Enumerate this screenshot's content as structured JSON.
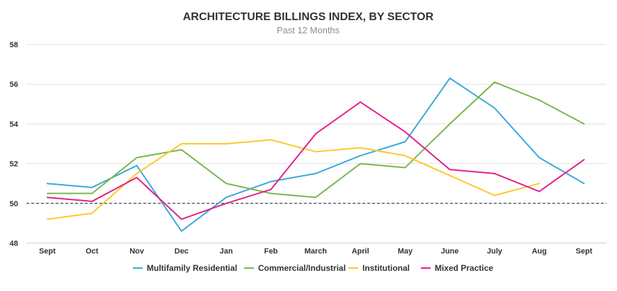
{
  "chart_data": {
    "type": "line",
    "title": "ARCHITECTURE BILLINGS INDEX, BY SECTOR",
    "subtitle": "Past 12 Months",
    "xlabel": "",
    "ylabel": "",
    "ylim": [
      48,
      58
    ],
    "yticks": [
      "48",
      "50",
      "52",
      "54",
      "56",
      "58"
    ],
    "categories": [
      "Sept",
      "Oct",
      "Nov",
      "Dec",
      "Jan",
      "Feb",
      "March",
      "April",
      "May",
      "June",
      "July",
      "Aug",
      "Sept"
    ],
    "reference_line": 50,
    "grid": true,
    "legend_position": "bottom",
    "series": [
      {
        "name": "Multifamily Residential",
        "color": "#3aa8dc",
        "values": [
          51.0,
          50.8,
          51.9,
          48.6,
          50.3,
          51.1,
          51.5,
          52.4,
          53.1,
          56.3,
          54.8,
          52.3,
          51.0
        ]
      },
      {
        "name": "Commercial/Industrial",
        "color": "#7ab648",
        "values": [
          50.5,
          50.5,
          52.3,
          52.7,
          51.0,
          50.5,
          50.3,
          52.0,
          51.8,
          54.0,
          56.1,
          55.2,
          54.0
        ]
      },
      {
        "name": "Institutional",
        "color": "#fcc72c",
        "values": [
          49.2,
          49.5,
          51.5,
          53.0,
          53.0,
          53.2,
          52.6,
          52.8,
          52.4,
          51.4,
          50.4,
          51.0,
          null
        ]
      },
      {
        "name": "Mixed Practice",
        "color": "#e21f87",
        "values": [
          50.3,
          50.1,
          51.3,
          49.2,
          50.0,
          50.7,
          53.5,
          55.1,
          53.6,
          51.7,
          51.5,
          50.6,
          52.2
        ]
      }
    ]
  }
}
